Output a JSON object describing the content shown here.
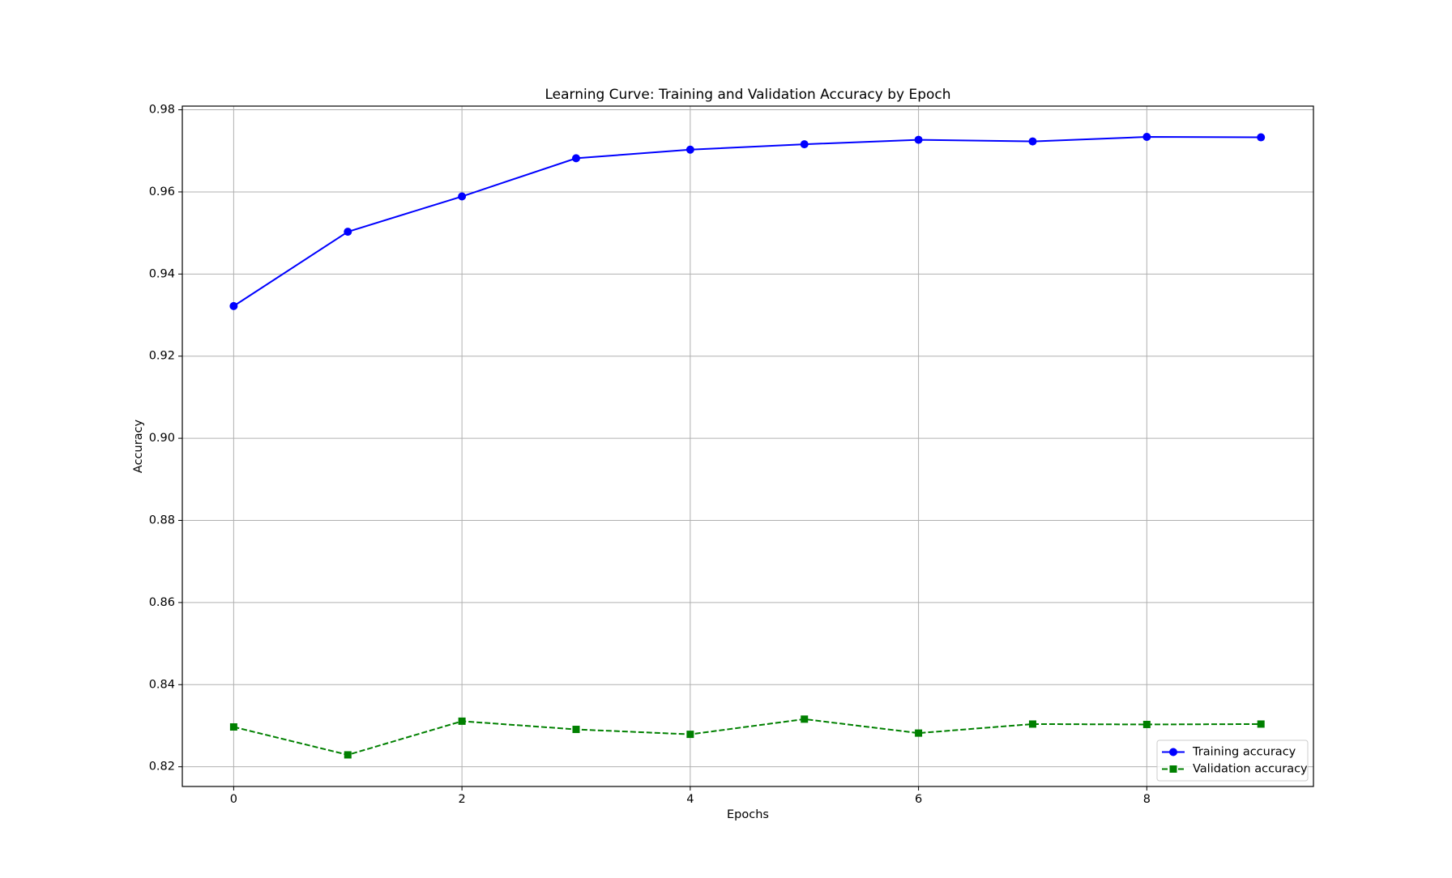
{
  "chart_data": {
    "type": "line",
    "title": "Learning Curve: Training and Validation Accuracy by Epoch",
    "x_label": "Epochs",
    "y_label": "Accuracy",
    "x": [
      0,
      1,
      2,
      3,
      4,
      5,
      6,
      7,
      8,
      9
    ],
    "series": [
      {
        "name": "Training accuracy",
        "color": "#0000ff",
        "marker": "circle",
        "linestyle": "solid",
        "values": [
          0.9322,
          0.9503,
          0.9589,
          0.9682,
          0.9703,
          0.9716,
          0.9727,
          0.9723,
          0.9734,
          0.9733
        ]
      },
      {
        "name": "Validation accuracy",
        "color": "#008000",
        "marker": "square",
        "linestyle": "dashed",
        "values": [
          0.8297,
          0.8229,
          0.8311,
          0.8291,
          0.8279,
          0.8316,
          0.8282,
          0.8304,
          0.8303,
          0.8304
        ]
      }
    ],
    "xlim": [
      -0.45,
      9.46
    ],
    "xticks": [
      0,
      2,
      4,
      6,
      8
    ],
    "ylim": [
      0.8152,
      0.9809
    ],
    "yticks": [
      0.82,
      0.84,
      0.86,
      0.88,
      {
        "value": 0.9,
        "label": "0.90"
      },
      0.92,
      0.94,
      0.96,
      0.98
    ],
    "grid": true,
    "legend": "lower right"
  }
}
